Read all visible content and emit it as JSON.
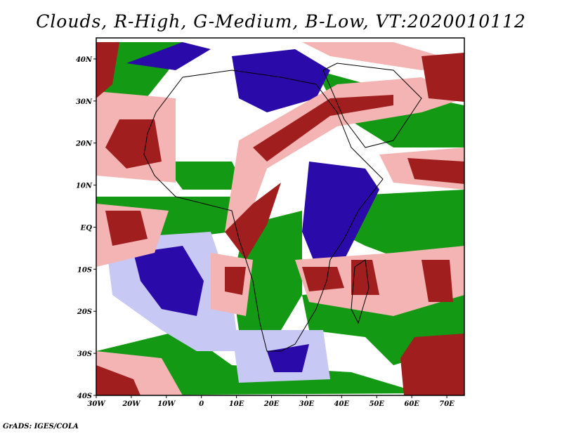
{
  "title": "Clouds, R-High, G-Medium, B-Low, VT:2020010112",
  "credit": "GrADS: IGES/COLA",
  "map": {
    "lon_range": [
      -30,
      75
    ],
    "lat_range": [
      -40,
      45
    ],
    "lat_labels": [
      "40N",
      "30N",
      "20N",
      "10N",
      "EQ",
      "10S",
      "20S",
      "30S",
      "40S"
    ],
    "lat_values": [
      40,
      30,
      20,
      10,
      0,
      -10,
      -20,
      -30,
      -40
    ],
    "lon_labels": [
      "30W",
      "20W",
      "10W",
      "0",
      "10E",
      "20E",
      "30E",
      "40E",
      "50E",
      "60E",
      "70E"
    ],
    "lon_values": [
      -30,
      -20,
      -10,
      0,
      10,
      20,
      30,
      40,
      50,
      60,
      70
    ]
  },
  "colors": {
    "high": "#a01e1e",
    "high_light": "#f4b4b4",
    "medium": "#139913",
    "low": "#2a0aa8",
    "low_light": "#c8c8f4"
  }
}
